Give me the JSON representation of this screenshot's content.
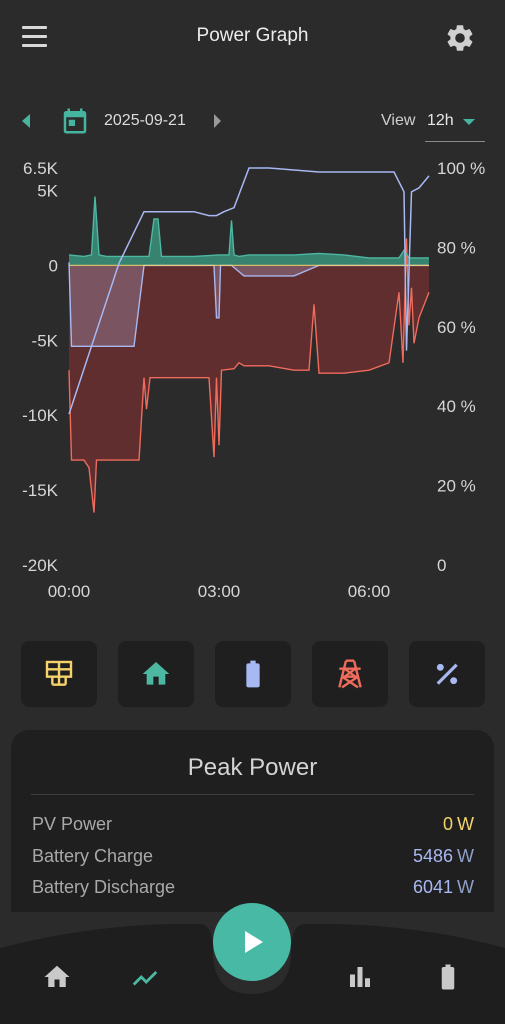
{
  "header": {
    "title": "Power Graph",
    "menu_icon": "menu-icon",
    "settings_icon": "gear-icon"
  },
  "date_nav": {
    "date": "2025-09-21",
    "view_label": "View",
    "view_value": "12h"
  },
  "colors": {
    "pv": "#f4d36a",
    "home": "#4cb8a2",
    "battery": "#a8b8f2",
    "grid": "#ef6b5c",
    "soc": "#a8b8f2",
    "load_fill": "#3a8c78",
    "grid_fill": "#6a2f2f",
    "battery_fill": "#7f5b6a"
  },
  "filter_buttons": [
    {
      "name": "pv-filter-button",
      "icon": "solar-panel-icon"
    },
    {
      "name": "home-filter-button",
      "icon": "home-icon"
    },
    {
      "name": "battery-filter-button",
      "icon": "battery-icon"
    },
    {
      "name": "grid-filter-button",
      "icon": "power-pylon-icon"
    },
    {
      "name": "soc-filter-button",
      "icon": "percent-icon"
    }
  ],
  "peak_power": {
    "title": "Peak Power",
    "rows": [
      {
        "label": "PV Power",
        "value": "0",
        "unit": "W",
        "color": "#f4d36a"
      },
      {
        "label": "Battery Charge",
        "value": "5486",
        "unit": "W",
        "color": "#a8b8f2"
      },
      {
        "label": "Battery Discharge",
        "value": "6041",
        "unit": "W",
        "color": "#a8b8f2"
      }
    ]
  },
  "bottom_nav": [
    {
      "name": "nav-home",
      "icon": "home-icon"
    },
    {
      "name": "nav-graph",
      "icon": "trend-icon"
    },
    {
      "name": "nav-play",
      "icon": "play-icon"
    },
    {
      "name": "nav-stats",
      "icon": "bar-chart-icon"
    },
    {
      "name": "nav-battery",
      "icon": "battery-icon"
    }
  ],
  "chart_data": {
    "type": "area",
    "x_unit": "hours",
    "xlim": [
      0,
      7.2
    ],
    "x_ticks": [
      {
        "value": 0,
        "label": "00:00"
      },
      {
        "value": 3,
        "label": "03:00"
      },
      {
        "value": 6,
        "label": "06:00"
      }
    ],
    "ylim": [
      -20000,
      6500
    ],
    "y_ticks": [
      {
        "value": 6500,
        "label": "6.5K"
      },
      {
        "value": 5000,
        "label": "5K"
      },
      {
        "value": 0,
        "label": "0"
      },
      {
        "value": -5000,
        "label": "-5K"
      },
      {
        "value": -10000,
        "label": "-10K"
      },
      {
        "value": -15000,
        "label": "-15K"
      },
      {
        "value": -20000,
        "label": "-20K"
      }
    ],
    "y2lim": [
      0,
      100
    ],
    "y2_ticks": [
      {
        "value": 100,
        "label": "100 %"
      },
      {
        "value": 80,
        "label": "80 %"
      },
      {
        "value": 60,
        "label": "60 %"
      },
      {
        "value": 40,
        "label": "40 %"
      },
      {
        "value": 20,
        "label": "20 %"
      },
      {
        "value": 0,
        "label": "0"
      }
    ],
    "grid": false,
    "series": [
      {
        "key": "home",
        "x": [
          0,
          0.3,
          0.45,
          0.52,
          0.6,
          0.75,
          1.0,
          1.6,
          1.7,
          1.78,
          1.85,
          2.0,
          2.5,
          3.0,
          3.2,
          3.25,
          3.3,
          3.4,
          3.6,
          4.0,
          4.5,
          5.0,
          5.5,
          6.0,
          6.6,
          6.7,
          6.8,
          7.0,
          7.2
        ],
        "y": [
          700,
          600,
          700,
          4600,
          700,
          600,
          600,
          600,
          3100,
          3100,
          600,
          600,
          600,
          700,
          700,
          3000,
          700,
          600,
          700,
          700,
          700,
          800,
          700,
          500,
          500,
          1000,
          500,
          500,
          500
        ]
      },
      {
        "key": "battery",
        "x": [
          0,
          0.05,
          0.5,
          1.3,
          1.5,
          2.9,
          2.95,
          3.0,
          3.03,
          3.25,
          3.5,
          4.5,
          5.0,
          6.0,
          6.4,
          6.6,
          6.75,
          6.85,
          6.9,
          7.2
        ],
        "y": [
          200,
          -5400,
          -5400,
          -5400,
          0,
          0,
          -3500,
          -3500,
          0,
          0,
          -700,
          -700,
          0,
          0,
          0,
          0,
          0,
          0,
          0,
          0
        ]
      },
      {
        "key": "grid",
        "x": [
          0,
          0.05,
          0.3,
          0.4,
          0.5,
          0.55,
          0.6,
          0.8,
          1.0,
          1.4,
          1.5,
          1.55,
          1.62,
          1.7,
          2.0,
          2.4,
          2.8,
          2.9,
          2.95,
          3.0,
          3.05,
          3.3,
          3.4,
          3.5,
          4.0,
          4.5,
          4.8,
          4.9,
          5.0,
          5.5,
          6.0,
          6.4,
          6.6,
          6.68,
          6.75,
          6.8,
          6.85,
          6.9,
          7.0,
          7.2
        ],
        "y": [
          -7000,
          -13000,
          -13000,
          -13500,
          -16500,
          -13000,
          -13000,
          -13000,
          -13000,
          -13000,
          -7500,
          -9600,
          -7500,
          -7500,
          -7500,
          -7500,
          -7500,
          -12800,
          -7500,
          -12000,
          -7000,
          -6900,
          -6500,
          -6700,
          -6700,
          -7000,
          -7000,
          -2600,
          -7200,
          -7200,
          -7000,
          -6500,
          -1800,
          -6500,
          1800,
          -4000,
          -1500,
          -5200,
          -3500,
          -1800
        ]
      },
      {
        "key": "soc",
        "axis": "right",
        "x": [
          0,
          0.5,
          1.0,
          1.5,
          2.0,
          2.5,
          2.8,
          2.95,
          3.1,
          3.3,
          3.6,
          4.0,
          5.0,
          5.6,
          6.0,
          6.5,
          6.7,
          6.75,
          6.85,
          7.0,
          7.2
        ],
        "y": [
          38,
          57,
          76,
          89,
          89,
          89,
          88,
          88,
          89,
          90,
          100,
          100,
          99,
          99,
          99,
          99,
          94,
          54,
          94,
          95,
          98
        ]
      }
    ]
  }
}
